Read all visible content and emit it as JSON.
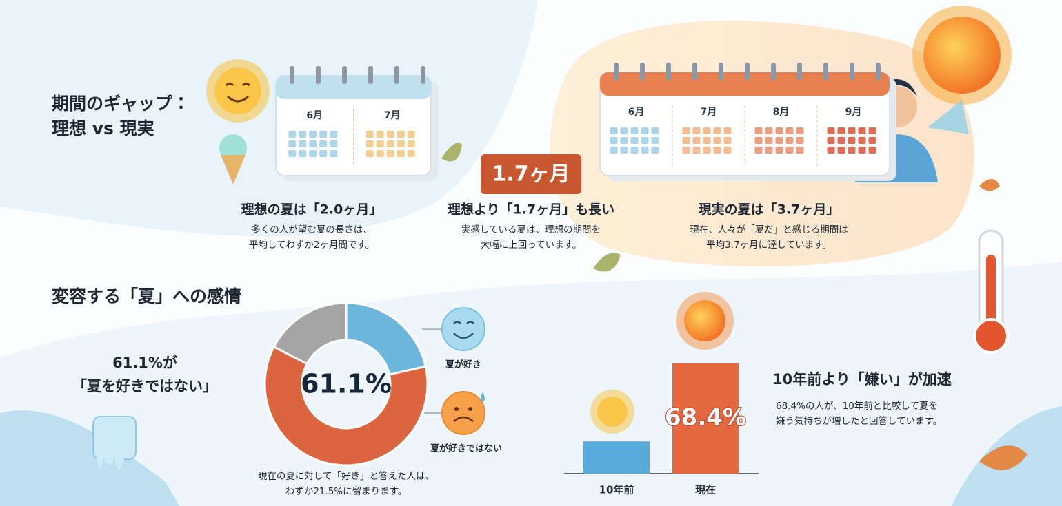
{
  "section1": {
    "title_lines": [
      "期間のギャップ：",
      "理想 vs 現実"
    ],
    "ideal_calendar_months": [
      "6月",
      "7月"
    ],
    "real_calendar_months": [
      "6月",
      "7月",
      "8月",
      "9月"
    ],
    "badge": "1.7ヶ月",
    "columns": [
      {
        "heading": "理想の夏は「2.0ヶ月」",
        "body": [
          "多くの人が望む夏の長さは、",
          "平均してわずか2ヶ月間です。"
        ]
      },
      {
        "heading": "理想より「1.7ヶ月」も長い",
        "body": [
          "実感している夏は、理想の期間を",
          "大幅に上回っています。"
        ]
      },
      {
        "heading": "現実の夏は「3.7ヶ月」",
        "body": [
          "現在、人々が「夏だ」と感じる期間は",
          "平均3.7ヶ月に達しています。"
        ]
      }
    ]
  },
  "section2": {
    "title": "変容する「夏」への感情",
    "callout": [
      "61.1%が",
      "「夏を好きではない」"
    ],
    "donut_note": [
      "現在の夏に対して「好き」と答えた人は、",
      "わずか21.5%に留まります。"
    ],
    "trend_heading": "10年前より「嫌い」が加速",
    "trend_body": [
      "68.4%の人が、10年前と比較して夏を",
      "嫌う気持ちが増したと回答しています。"
    ]
  },
  "chart_data": [
    {
      "type": "pie",
      "categories": [
        "夏が好き",
        "夏が好きではない",
        null
      ],
      "values": [
        21.5,
        61.1,
        17.4
      ],
      "value_labels": [
        null,
        "61.1%",
        null
      ],
      "colors": [
        "#6cb6dd",
        "#dc6540",
        "#a5a5a5"
      ]
    },
    {
      "type": "bar",
      "categories": [
        "10年前",
        "現在"
      ],
      "values": [
        20,
        68.4
      ],
      "value_labels": [
        null,
        "68.4%"
      ],
      "colors": [
        "#58aadb",
        "#e3683d"
      ]
    }
  ]
}
